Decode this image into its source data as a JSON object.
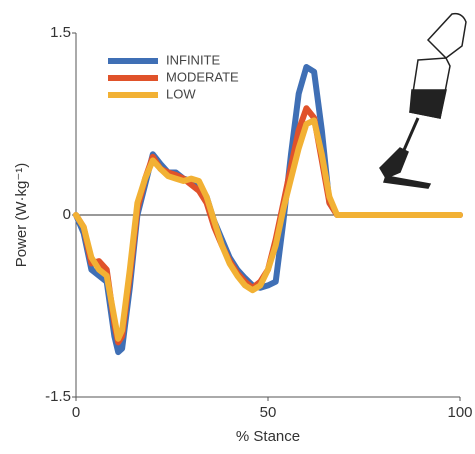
{
  "chart_data": {
    "type": "line",
    "y_label": "Power (W·kg⁻¹)",
    "x_label": "% Stance",
    "x": [
      0,
      2,
      4,
      6,
      8,
      10,
      11,
      12,
      14,
      16,
      18,
      20,
      22,
      24,
      26,
      28,
      30,
      32,
      34,
      36,
      38,
      40,
      42,
      44,
      46,
      48,
      50,
      52,
      54,
      56,
      58,
      60,
      62,
      64,
      66,
      68,
      70,
      80,
      90,
      100
    ],
    "series": [
      {
        "name": "INFINITE",
        "color": "#3f6fb5",
        "values": [
          0,
          -0.15,
          -0.45,
          -0.5,
          -0.55,
          -1.0,
          -1.13,
          -1.1,
          -0.6,
          0.0,
          0.25,
          0.5,
          0.42,
          0.35,
          0.35,
          0.3,
          0.28,
          0.25,
          0.15,
          -0.05,
          -0.2,
          -0.35,
          -0.45,
          -0.52,
          -0.58,
          -0.6,
          -0.58,
          -0.55,
          -0.05,
          0.5,
          1.0,
          1.22,
          1.18,
          0.7,
          0.1,
          0,
          0,
          0,
          0,
          0
        ]
      },
      {
        "name": "MODERATE",
        "color": "#e0522a",
        "values": [
          0,
          -0.1,
          -0.4,
          -0.38,
          -0.45,
          -0.9,
          -1.05,
          -1.0,
          -0.5,
          0.05,
          0.3,
          0.48,
          0.38,
          0.35,
          0.33,
          0.3,
          0.25,
          0.2,
          0.1,
          -0.1,
          -0.25,
          -0.38,
          -0.48,
          -0.55,
          -0.6,
          -0.55,
          -0.45,
          -0.2,
          0.1,
          0.4,
          0.7,
          0.88,
          0.8,
          0.45,
          0.1,
          0,
          0,
          0,
          0,
          0
        ]
      },
      {
        "name": "LOW",
        "color": "#f2b134",
        "values": [
          0,
          -0.1,
          -0.35,
          -0.45,
          -0.5,
          -0.85,
          -1.02,
          -0.95,
          -0.45,
          0.1,
          0.3,
          0.45,
          0.38,
          0.32,
          0.3,
          0.28,
          0.3,
          0.28,
          0.15,
          -0.05,
          -0.25,
          -0.4,
          -0.5,
          -0.58,
          -0.62,
          -0.58,
          -0.45,
          -0.25,
          0.05,
          0.3,
          0.55,
          0.75,
          0.78,
          0.5,
          0.15,
          0,
          0,
          0,
          0,
          0
        ]
      }
    ],
    "xlim": [
      0,
      100
    ],
    "xticks": [
      0,
      50,
      100
    ],
    "ylim": [
      -1.5,
      1.5
    ],
    "yticks": [
      -1.5,
      0,
      1.5
    ],
    "zero_line": true,
    "legend": "upper left"
  }
}
